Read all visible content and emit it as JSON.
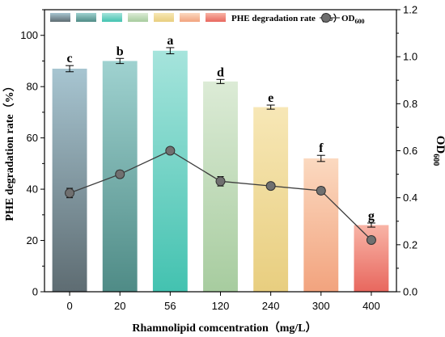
{
  "chart_data": {
    "type": "bar",
    "categories": [
      "0",
      "20",
      "56",
      "120",
      "240",
      "300",
      "400"
    ],
    "xlabel": "Rhamnolipid comcentration（mg/L）",
    "ylabel_left": "PHE degradation rate（%）",
    "ylabel_right_main": "OD",
    "ylabel_right_sub": "600",
    "ylim_left": [
      0,
      110
    ],
    "ylim_right": [
      0,
      1.2
    ],
    "yticks_left": [
      "0",
      "20",
      "40",
      "60",
      "80",
      "100"
    ],
    "yticks_right": [
      "0.0",
      "0.2",
      "0.4",
      "0.6",
      "0.8",
      "1.0",
      "1.2"
    ],
    "series": [
      {
        "name": "PHE degradation rate（%）",
        "kind": "bar",
        "axis": "left",
        "values": [
          87,
          90,
          94,
          82,
          72,
          52,
          26
        ],
        "errors": [
          1.2,
          1.0,
          1.2,
          0.8,
          0.8,
          1.2,
          0.8
        ],
        "significance": [
          "c",
          "b",
          "a",
          "d",
          "e",
          "f",
          "g"
        ]
      },
      {
        "name": "OD₆₀₀",
        "legend_main": "OD",
        "legend_sub": "600",
        "kind": "line",
        "axis": "right",
        "values": [
          0.42,
          0.5,
          0.6,
          0.47,
          0.45,
          0.43,
          0.22
        ],
        "errors": [
          0.02,
          0.015,
          0.012,
          0.02,
          0.012,
          0.015,
          0.012
        ]
      }
    ],
    "bar_colors": [
      [
        "#a7c5d1",
        "#5e6c72"
      ],
      [
        "#9fd2d0",
        "#4f8b86"
      ],
      [
        "#a6e4dc",
        "#43c2b0"
      ],
      [
        "#dcebd6",
        "#a7cc9f"
      ],
      [
        "#f7e7b6",
        "#e8ce7f"
      ],
      [
        "#fbd9c0",
        "#f2a37e"
      ],
      [
        "#f8b4a6",
        "#e8675e"
      ]
    ]
  }
}
